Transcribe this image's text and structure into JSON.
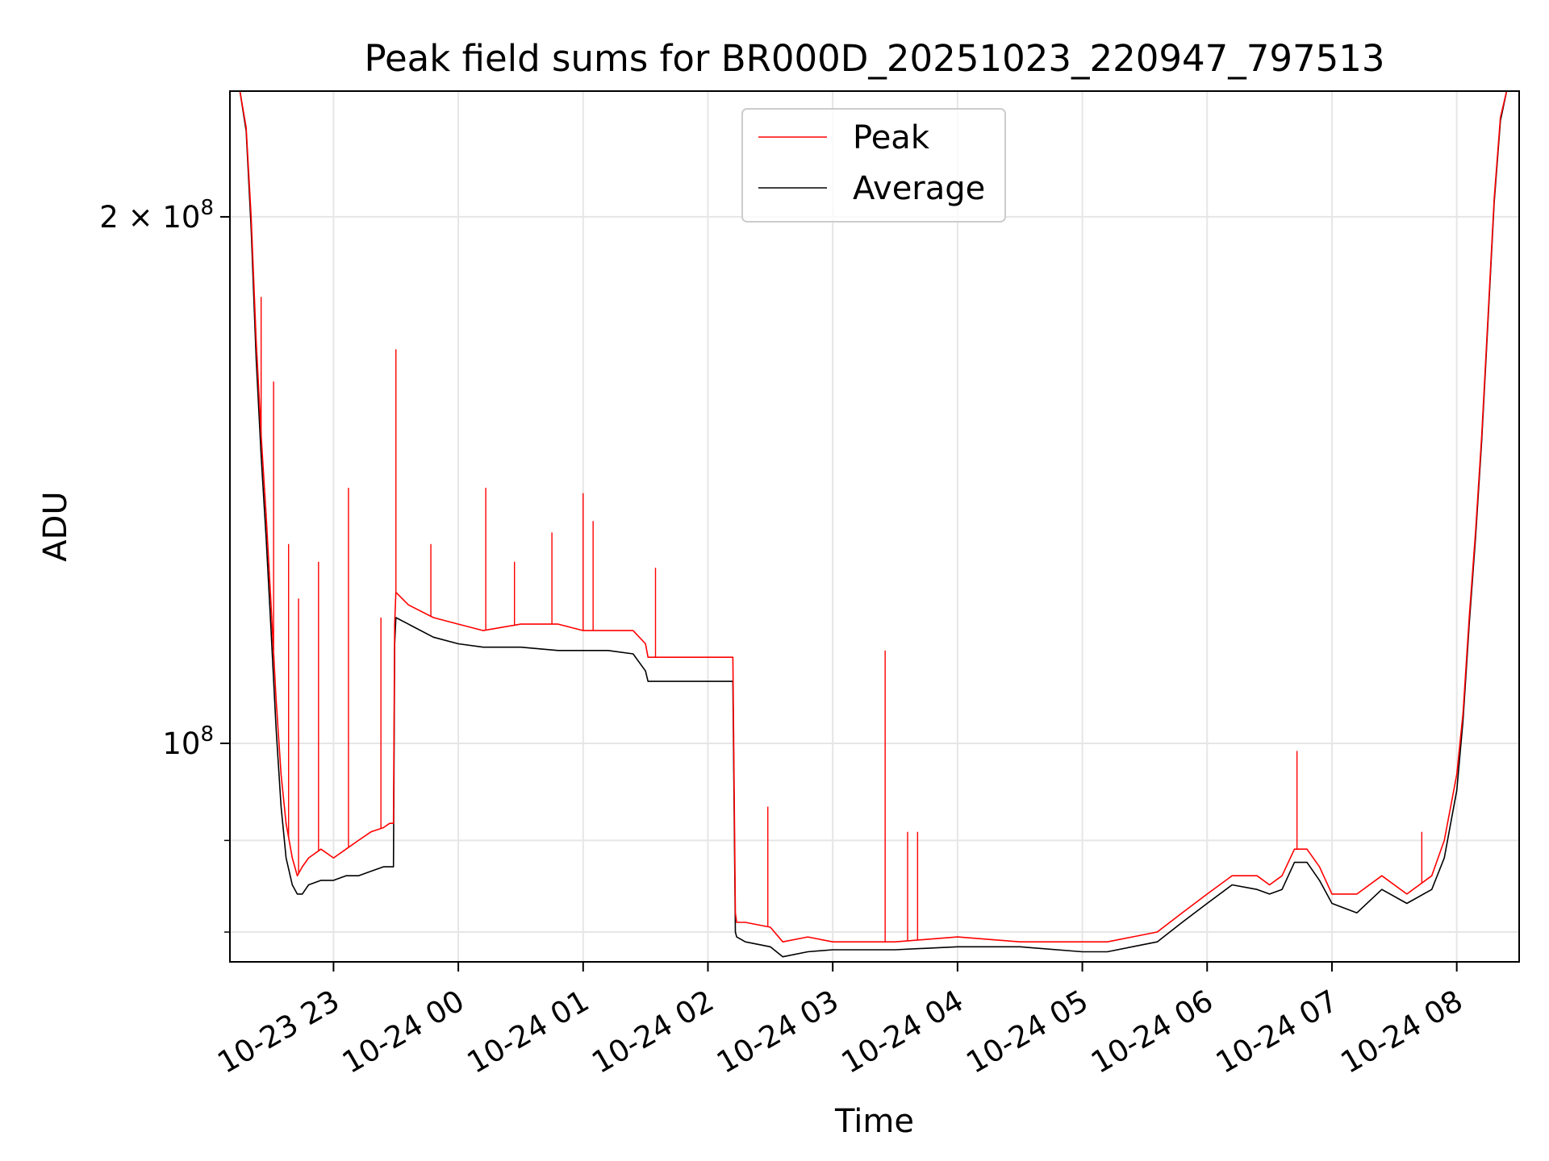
{
  "chart_data": {
    "type": "line",
    "title": "Peak field sums for BR000D_20251023_220947_797513",
    "xlabel": "Time",
    "ylabel": "ADU",
    "yscale": "log",
    "grid": true,
    "legend_position": "top-center",
    "xlim": [
      -0.83,
      9.5
    ],
    "ylim": [
      75000000,
      236000000
    ],
    "x_unit": "hours since 2025-10-23 23:00",
    "x_ticks": [
      {
        "value": 0,
        "label": "10-23 23"
      },
      {
        "value": 1,
        "label": "10-24 00"
      },
      {
        "value": 2,
        "label": "10-24 01"
      },
      {
        "value": 3,
        "label": "10-24 02"
      },
      {
        "value": 4,
        "label": "10-24 03"
      },
      {
        "value": 5,
        "label": "10-24 04"
      },
      {
        "value": 6,
        "label": "10-24 05"
      },
      {
        "value": 7,
        "label": "10-24 06"
      },
      {
        "value": 8,
        "label": "10-24 07"
      },
      {
        "value": 9,
        "label": "10-24 08"
      }
    ],
    "y_ticks_major": [
      {
        "value": 100000000,
        "base": "10",
        "exp": "8",
        "coef": ""
      },
      {
        "value": 200000000,
        "base": "10",
        "exp": "8",
        "coef": "2 × "
      }
    ],
    "y_ticks_minor": [
      78000000,
      88000000
    ],
    "series": [
      {
        "name": "Peak",
        "color": "#ff0000",
        "x": [
          -0.82,
          -0.75,
          -0.7,
          -0.66,
          -0.62,
          -0.58,
          -0.54,
          -0.5,
          -0.46,
          -0.42,
          -0.38,
          -0.33,
          -0.29,
          -0.25,
          -0.2,
          -0.1,
          0.0,
          0.1,
          0.2,
          0.3,
          0.4,
          0.45,
          0.48,
          0.49,
          0.5,
          0.6,
          0.8,
          1.0,
          1.2,
          1.5,
          1.8,
          2.0,
          2.2,
          2.4,
          2.5,
          2.52,
          2.7,
          2.9,
          3.0,
          3.2,
          3.22,
          3.23,
          3.3,
          3.5,
          3.6,
          3.8,
          4.0,
          4.5,
          5.0,
          5.5,
          6.0,
          6.2,
          6.4,
          6.6,
          6.8,
          7.0,
          7.2,
          7.4,
          7.5,
          7.6,
          7.7,
          7.8,
          7.9,
          8.0,
          8.2,
          8.4,
          8.6,
          8.8,
          8.9,
          9.0,
          9.05,
          9.1,
          9.15,
          9.2,
          9.25,
          9.3,
          9.35,
          9.4,
          9.45
        ],
        "values": [
          236000000,
          236000000,
          225000000,
          200000000,
          170000000,
          150000000,
          135000000,
          120000000,
          106000000,
          96000000,
          90000000,
          86000000,
          84000000,
          85000000,
          86000000,
          87000000,
          86000000,
          87000000,
          88000000,
          89000000,
          89500000,
          90000000,
          90000000,
          117000000,
          122000000,
          120000000,
          118000000,
          117000000,
          116000000,
          117000000,
          117000000,
          116000000,
          116000000,
          116000000,
          114000000,
          112000000,
          112000000,
          112000000,
          112000000,
          112000000,
          80000000,
          79000000,
          79000000,
          78500000,
          77000000,
          77500000,
          77000000,
          77000000,
          77500000,
          77000000,
          77000000,
          77000000,
          77500000,
          78000000,
          80000000,
          82000000,
          84000000,
          84000000,
          83000000,
          84000000,
          87000000,
          87000000,
          85000000,
          82000000,
          82000000,
          84000000,
          82000000,
          84000000,
          88000000,
          96000000,
          104000000,
          118000000,
          132000000,
          150000000,
          175000000,
          205000000,
          228000000,
          236000000,
          236000000
        ],
        "spikes": [
          {
            "x": -0.58,
            "value": 180000000
          },
          {
            "x": -0.48,
            "value": 161000000
          },
          {
            "x": -0.36,
            "value": 130000000
          },
          {
            "x": -0.28,
            "value": 121000000
          },
          {
            "x": -0.12,
            "value": 127000000
          },
          {
            "x": 0.12,
            "value": 140000000
          },
          {
            "x": 0.38,
            "value": 118000000
          },
          {
            "x": 0.5,
            "value": 168000000
          },
          {
            "x": 0.78,
            "value": 130000000
          },
          {
            "x": 1.22,
            "value": 140000000
          },
          {
            "x": 1.45,
            "value": 127000000
          },
          {
            "x": 1.75,
            "value": 132000000
          },
          {
            "x": 2.0,
            "value": 139000000
          },
          {
            "x": 2.08,
            "value": 134000000
          },
          {
            "x": 2.58,
            "value": 126000000
          },
          {
            "x": 3.48,
            "value": 92000000
          },
          {
            "x": 4.42,
            "value": 113000000
          },
          {
            "x": 4.6,
            "value": 89000000
          },
          {
            "x": 4.68,
            "value": 89000000
          },
          {
            "x": 7.72,
            "value": 99000000
          },
          {
            "x": 8.72,
            "value": 89000000
          }
        ]
      },
      {
        "name": "Average",
        "color": "#000000",
        "x": [
          -0.82,
          -0.75,
          -0.7,
          -0.66,
          -0.62,
          -0.58,
          -0.54,
          -0.5,
          -0.46,
          -0.42,
          -0.38,
          -0.33,
          -0.29,
          -0.25,
          -0.2,
          -0.1,
          0.0,
          0.1,
          0.2,
          0.3,
          0.4,
          0.45,
          0.48,
          0.49,
          0.5,
          0.6,
          0.8,
          1.0,
          1.2,
          1.5,
          1.8,
          2.0,
          2.2,
          2.4,
          2.5,
          2.52,
          2.7,
          2.9,
          3.0,
          3.2,
          3.22,
          3.23,
          3.3,
          3.5,
          3.6,
          3.8,
          4.0,
          4.5,
          5.0,
          5.5,
          6.0,
          6.2,
          6.4,
          6.6,
          6.8,
          7.0,
          7.2,
          7.4,
          7.5,
          7.6,
          7.7,
          7.8,
          7.9,
          8.0,
          8.2,
          8.4,
          8.6,
          8.8,
          8.9,
          9.0,
          9.05,
          9.1,
          9.15,
          9.2,
          9.25,
          9.3,
          9.35,
          9.4,
          9.45
        ],
        "values": [
          236000000,
          236000000,
          224000000,
          197000000,
          166000000,
          146000000,
          131000000,
          116000000,
          102000000,
          92000000,
          86000000,
          83000000,
          82000000,
          82000000,
          83000000,
          83500000,
          83500000,
          84000000,
          84000000,
          84500000,
          85000000,
          85000000,
          85000000,
          114000000,
          118000000,
          117000000,
          115000000,
          114000000,
          113500000,
          113500000,
          113000000,
          113000000,
          113000000,
          112500000,
          110000000,
          108500000,
          108500000,
          108500000,
          108500000,
          108500000,
          78000000,
          77500000,
          77000000,
          76500000,
          75500000,
          76000000,
          76200000,
          76200000,
          76500000,
          76500000,
          76000000,
          76000000,
          76500000,
          77000000,
          79000000,
          81000000,
          83000000,
          82500000,
          82000000,
          82500000,
          85500000,
          85500000,
          83500000,
          81000000,
          80000000,
          82500000,
          81000000,
          82500000,
          86000000,
          94000000,
          103000000,
          117000000,
          131000000,
          149000000,
          174000000,
          204000000,
          227000000,
          236000000,
          236000000
        ]
      }
    ]
  }
}
